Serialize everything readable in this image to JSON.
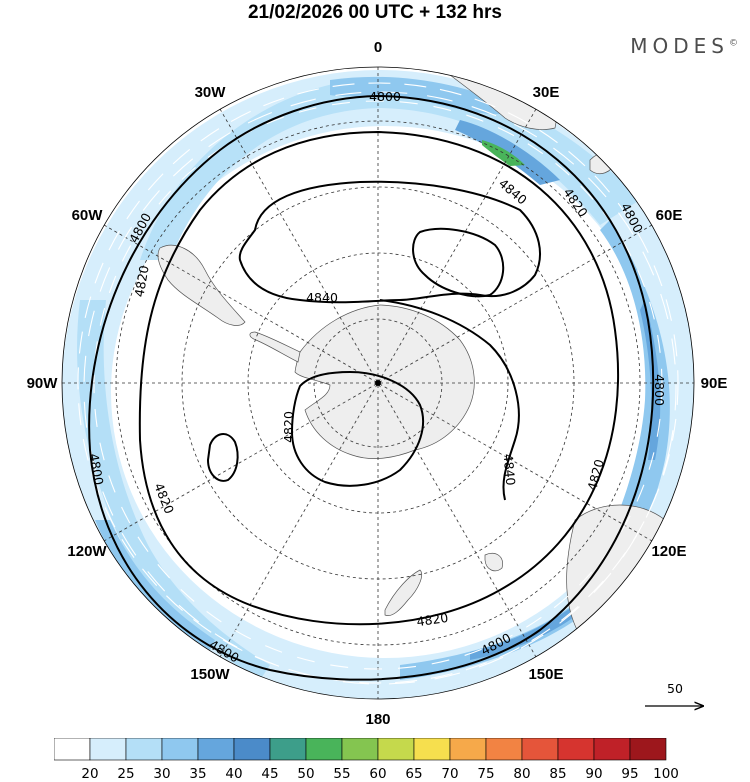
{
  "title": "21/02/2026  00 UTC  + 132 hrs",
  "brand": "MODES",
  "brand_mark": "©",
  "longitude_labels": [
    {
      "text": "0",
      "lon": 0
    },
    {
      "text": "30E",
      "lon": 30
    },
    {
      "text": "60E",
      "lon": 60
    },
    {
      "text": "90E",
      "lon": 90
    },
    {
      "text": "120E",
      "lon": 120
    },
    {
      "text": "150E",
      "lon": 150
    },
    {
      "text": "180",
      "lon": 180
    },
    {
      "text": "150W",
      "lon": -150
    },
    {
      "text": "120W",
      "lon": -120
    },
    {
      "text": "90W",
      "lon": -90
    },
    {
      "text": "60W",
      "lon": -60
    },
    {
      "text": "30W",
      "lon": -30
    }
  ],
  "contour_labels": [
    "4800",
    "4820",
    "4840"
  ],
  "reference_vector": {
    "value": "50"
  },
  "colorbar": {
    "labels": [
      "20",
      "25",
      "30",
      "35",
      "40",
      "45",
      "50",
      "55",
      "60",
      "65",
      "70",
      "75",
      "80",
      "85",
      "90",
      "95",
      "100"
    ],
    "colors": [
      "#ffffff",
      "#d6eefc",
      "#b4dff7",
      "#8fc8ef",
      "#65a6dd",
      "#4b8bc9",
      "#3d9e8a",
      "#49b45a",
      "#84c550",
      "#c5d94c",
      "#f6df4e",
      "#f6a94a",
      "#f28343",
      "#e5553a",
      "#d6342f",
      "#bf2128",
      "#9d171c"
    ]
  },
  "map": {
    "projection": "south-polar-stereographic",
    "field": "wind speed (shaded)",
    "contours": "geopotential height",
    "land_color": "#eeeeee"
  }
}
